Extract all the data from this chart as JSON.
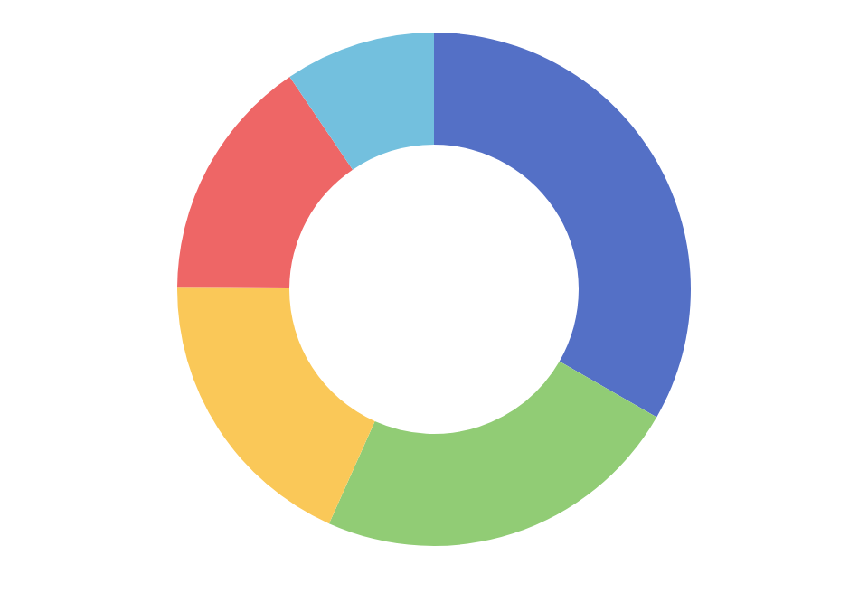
{
  "chart_data": {
    "type": "donut",
    "categories": [
      null,
      null,
      null,
      null,
      null
    ],
    "values": [
      33.3,
      23.4,
      18.4,
      15.4,
      9.5
    ],
    "colors": [
      "#5470c6",
      "#91cc75",
      "#fac858",
      "#ee6666",
      "#73c0de"
    ]
  }
}
